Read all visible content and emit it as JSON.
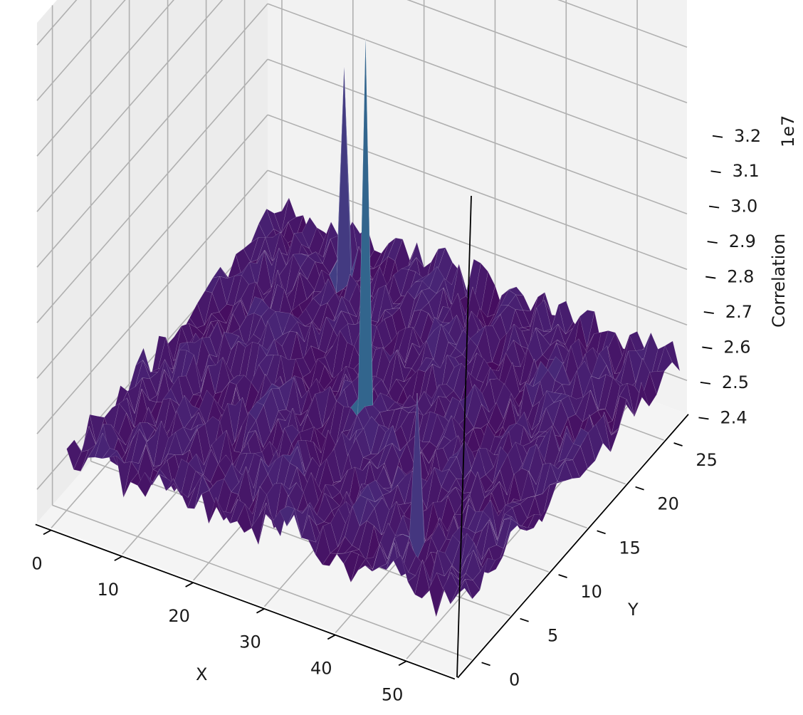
{
  "chart_data": {
    "type": "surface",
    "colormap": "viridis",
    "xlabel": "X",
    "ylabel": "Y",
    "zlabel": "Correlation",
    "z_offset_label": "1e7",
    "x_ticks": [
      "0",
      "10",
      "20",
      "30",
      "40",
      "50"
    ],
    "y_ticks": [
      "0",
      "5",
      "10",
      "15",
      "20",
      "25"
    ],
    "z_ticks": [
      "2.4",
      "2.5",
      "2.6",
      "2.7",
      "2.8",
      "2.9",
      "3.0",
      "3.1",
      "3.2"
    ],
    "xlim": [
      -2,
      57
    ],
    "ylim": [
      -2,
      28
    ],
    "zlim": [
      2.34,
      3.24
    ],
    "surface": {
      "x_range": [
        0,
        56
      ],
      "y_range": [
        0,
        28
      ],
      "baseline_z": 2.44,
      "noise_amplitude": 0.035
    },
    "peaks": [
      {
        "x": 28,
        "y": 13,
        "z": 3.115
      },
      {
        "x": 12,
        "y": 25,
        "z": 2.8
      },
      {
        "x": 45,
        "y": 4,
        "z": 2.7
      }
    ]
  },
  "colors": {
    "pane_left": "#ececec",
    "pane_back": "#f2f2f2",
    "pane_floor": "#f4f4f4",
    "grid": "#b0b0b0"
  }
}
